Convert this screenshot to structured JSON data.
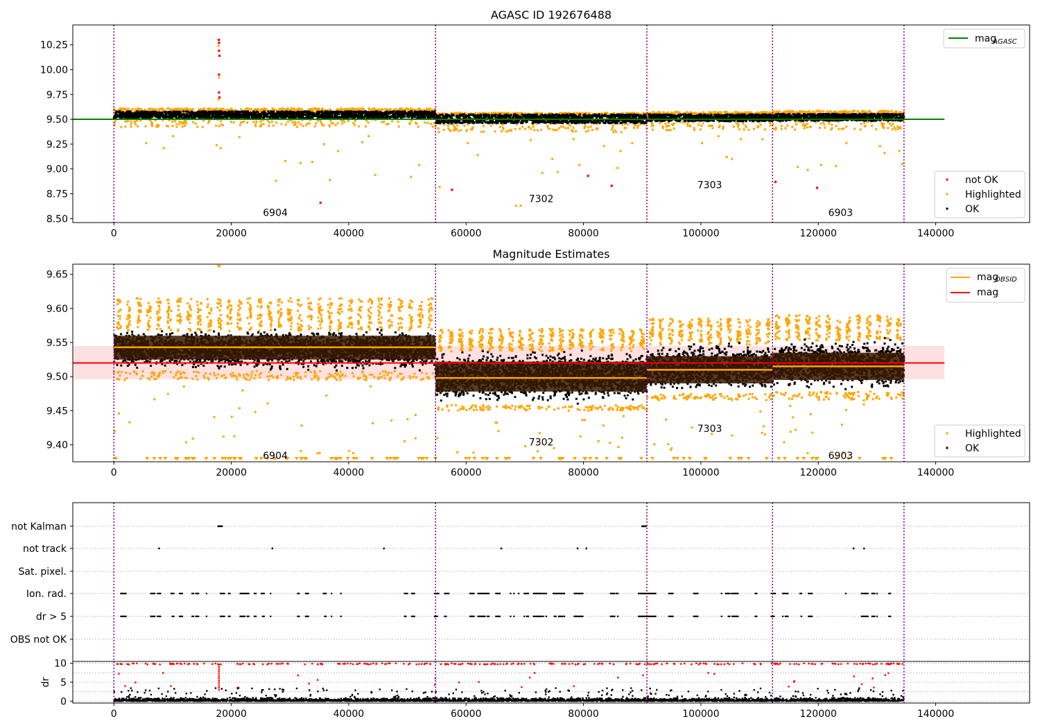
{
  "chart_data": [
    {
      "type": "scatter",
      "title": "AGASC ID 192676488",
      "xlim": [
        -7000,
        156000
      ],
      "ylim": [
        8.46,
        10.45
      ],
      "xticks": [
        0,
        20000,
        40000,
        60000,
        80000,
        100000,
        120000,
        140000
      ],
      "yticks": [
        8.5,
        8.75,
        9.0,
        9.25,
        9.5,
        9.75,
        10.0,
        10.25
      ],
      "ytick_labels": [
        "8.50",
        "8.75",
        "9.00",
        "9.25",
        "9.50",
        "9.75",
        "10.00",
        "10.25"
      ],
      "obsid_boundaries": [
        0,
        54800,
        90800,
        112200,
        134600
      ],
      "obsids": [
        {
          "label": "6904",
          "x": 27500,
          "y": 8.56
        },
        {
          "label": "7302",
          "x": 72800,
          "y": 8.7
        },
        {
          "label": "7303",
          "x": 101500,
          "y": 8.84
        },
        {
          "label": "6903",
          "x": 123800,
          "y": 8.56
        }
      ],
      "mag_agasc": {
        "value": 9.5,
        "x_range": [
          -7000,
          141500
        ]
      },
      "segments": [
        {
          "x0": 0,
          "x1": 54800,
          "ok_center": 9.545,
          "ok_spread": 0.035,
          "hl_top": 9.61,
          "hl_low": 9.5
        },
        {
          "x0": 54800,
          "x1": 90800,
          "ok_center": 9.505,
          "ok_spread": 0.045,
          "hl_top": 9.565,
          "hl_low": 9.44
        },
        {
          "x0": 90800,
          "x1": 112200,
          "ok_center": 9.515,
          "ok_spread": 0.035,
          "hl_top": 9.575,
          "hl_low": 9.46
        },
        {
          "x0": 112200,
          "x1": 134600,
          "ok_center": 9.52,
          "ok_spread": 0.035,
          "hl_top": 9.585,
          "hl_low": 9.46
        }
      ],
      "not_ok_points": [
        {
          "x": 17900,
          "y": 10.3
        },
        {
          "x": 17900,
          "y": 10.27
        },
        {
          "x": 17900,
          "y": 10.19
        },
        {
          "x": 18000,
          "y": 10.14
        },
        {
          "x": 17900,
          "y": 9.95
        },
        {
          "x": 17900,
          "y": 9.77
        },
        {
          "x": 18000,
          "y": 9.72
        },
        {
          "x": 35200,
          "y": 8.66
        },
        {
          "x": 57600,
          "y": 8.79
        },
        {
          "x": 80800,
          "y": 8.93
        },
        {
          "x": 84800,
          "y": 8.83
        },
        {
          "x": 112700,
          "y": 8.87
        },
        {
          "x": 119800,
          "y": 8.81
        }
      ],
      "outliers": [
        {
          "x": 5500,
          "y": 9.26
        },
        {
          "x": 8500,
          "y": 9.21
        },
        {
          "x": 10100,
          "y": 9.33
        },
        {
          "x": 17500,
          "y": 9.24
        },
        {
          "x": 18200,
          "y": 9.21
        },
        {
          "x": 21400,
          "y": 9.32
        },
        {
          "x": 27600,
          "y": 8.88
        },
        {
          "x": 29200,
          "y": 9.08
        },
        {
          "x": 31800,
          "y": 9.06
        },
        {
          "x": 33800,
          "y": 9.07
        },
        {
          "x": 35800,
          "y": 9.25
        },
        {
          "x": 36800,
          "y": 8.89
        },
        {
          "x": 38200,
          "y": 9.18
        },
        {
          "x": 42300,
          "y": 9.27
        },
        {
          "x": 43400,
          "y": 9.33
        },
        {
          "x": 44500,
          "y": 8.94
        },
        {
          "x": 50600,
          "y": 8.92
        },
        {
          "x": 52000,
          "y": 9.04
        },
        {
          "x": 55500,
          "y": 8.82
        },
        {
          "x": 60300,
          "y": 9.26
        },
        {
          "x": 62000,
          "y": 9.14
        },
        {
          "x": 68500,
          "y": 8.63
        },
        {
          "x": 69300,
          "y": 8.63
        },
        {
          "x": 71000,
          "y": 9.29
        },
        {
          "x": 73000,
          "y": 8.96
        },
        {
          "x": 74700,
          "y": 9.1
        },
        {
          "x": 75600,
          "y": 8.97
        },
        {
          "x": 78300,
          "y": 9.3
        },
        {
          "x": 79300,
          "y": 9.04
        },
        {
          "x": 83500,
          "y": 9.23
        },
        {
          "x": 85800,
          "y": 9.01
        },
        {
          "x": 86300,
          "y": 9.18
        },
        {
          "x": 88300,
          "y": 9.26
        },
        {
          "x": 94500,
          "y": 9.39
        },
        {
          "x": 100200,
          "y": 9.26
        },
        {
          "x": 103000,
          "y": 9.33
        },
        {
          "x": 104400,
          "y": 9.12
        },
        {
          "x": 105300,
          "y": 9.1
        },
        {
          "x": 106800,
          "y": 9.3
        },
        {
          "x": 110500,
          "y": 9.3
        },
        {
          "x": 116500,
          "y": 9.02
        },
        {
          "x": 118200,
          "y": 8.99
        },
        {
          "x": 120500,
          "y": 9.04
        },
        {
          "x": 123000,
          "y": 9.03
        },
        {
          "x": 124800,
          "y": 9.26
        },
        {
          "x": 130500,
          "y": 9.23
        },
        {
          "x": 131300,
          "y": 9.16
        },
        {
          "x": 133800,
          "y": 9.18
        },
        {
          "x": 134300,
          "y": 9.05
        }
      ],
      "legend_top": {
        "label": "mag",
        "sub": "AGASC",
        "color": "#008000"
      },
      "legend_bottom": [
        {
          "label": "not OK",
          "color": "#ff0000"
        },
        {
          "label": "Highlighted",
          "color": "#ffa500"
        },
        {
          "label": "OK",
          "color": "#000000"
        }
      ]
    },
    {
      "type": "scatter",
      "title": "Magnitude Estimates",
      "xlim": [
        -7000,
        156000
      ],
      "ylim": [
        9.375,
        9.665
      ],
      "xticks": [
        0,
        20000,
        40000,
        60000,
        80000,
        100000,
        120000,
        140000
      ],
      "yticks": [
        9.4,
        9.45,
        9.5,
        9.55,
        9.6,
        9.65
      ],
      "ytick_labels": [
        "9.40",
        "9.45",
        "9.50",
        "9.55",
        "9.60",
        "9.65"
      ],
      "obsid_boundaries": [
        0,
        54800,
        90800,
        112200,
        134600
      ],
      "obsids": [
        {
          "label": "6904",
          "x": 27500,
          "y": 9.384
        },
        {
          "label": "7302",
          "x": 72800,
          "y": 9.404
        },
        {
          "label": "7303",
          "x": 101500,
          "y": 9.424
        },
        {
          "label": "6903",
          "x": 123800,
          "y": 9.384
        }
      ],
      "mag": {
        "value": 9.52,
        "band": [
          9.496,
          9.545
        ],
        "x_range": [
          -7000,
          141500
        ]
      },
      "segments": [
        {
          "x0": 0,
          "x1": 54800,
          "mag_obsid": 9.543,
          "ok_lo": 9.508,
          "ok_hi": 9.572,
          "band_lo": 9.525,
          "band_hi": 9.56,
          "hl_top": 9.615,
          "hl_low": 9.495
        },
        {
          "x0": 54800,
          "x1": 90800,
          "mag_obsid": 9.498,
          "ok_lo": 9.458,
          "ok_hi": 9.542,
          "band_lo": 9.478,
          "band_hi": 9.522,
          "hl_top": 9.57,
          "hl_low": 9.45
        },
        {
          "x0": 90800,
          "x1": 112200,
          "mag_obsid": 9.51,
          "ok_lo": 9.475,
          "ok_hi": 9.552,
          "band_lo": 9.49,
          "band_hi": 9.53,
          "hl_top": 9.585,
          "hl_low": 9.465
        },
        {
          "x0": 112200,
          "x1": 134600,
          "mag_obsid": 9.515,
          "ok_lo": 9.478,
          "ok_hi": 9.558,
          "band_lo": 9.495,
          "band_hi": 9.535,
          "hl_top": 9.59,
          "hl_low": 9.465
        }
      ],
      "legend_top": [
        {
          "label": "mag",
          "sub": "OBSID",
          "color": "#ffa500"
        },
        {
          "label": "mag",
          "sub": "",
          "color": "#ff0000"
        }
      ],
      "legend_bottom": [
        {
          "label": "Highlighted",
          "color": "#ffa500"
        },
        {
          "label": "OK",
          "color": "#000000"
        }
      ]
    },
    {
      "type": "scatter",
      "title": "",
      "xlim": [
        -7000,
        156000
      ],
      "flag_rows": [
        "not Kalman",
        "not track",
        "Sat. pixel.",
        "Ion. rad.",
        "dr > 5",
        "OBS not OK"
      ],
      "obsid_boundaries": [
        0,
        54800,
        90800,
        112200,
        134600
      ],
      "not_kalman_x": [
        17800,
        18000,
        18200,
        18400,
        90000,
        90200,
        90400,
        90600
      ],
      "not_track_x": [
        7700,
        27000,
        46000,
        66000,
        79000,
        80500,
        126000,
        127800
      ],
      "dr_ylabel": "dr",
      "dr_ylim": [
        -0.5,
        10.5
      ],
      "dr_yticks": [
        0,
        5,
        10
      ],
      "dr_ytick_labels": [
        "0",
        "5",
        "10"
      ],
      "dr_xticks": [
        0,
        20000,
        40000,
        60000,
        80000,
        100000,
        120000,
        140000
      ]
    }
  ]
}
